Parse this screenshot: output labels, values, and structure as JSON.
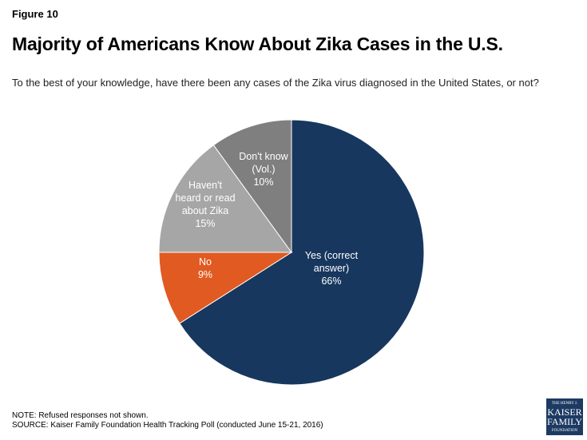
{
  "figure_label": "Figure 10",
  "chart_data": {
    "type": "pie",
    "title": "Majority of Americans Know About Zika Cases in the U.S.",
    "subtitle": "To the best of your knowledge, have there been any cases of the Zika virus diagnosed in the United States, or not?",
    "slices": [
      {
        "label": [
          "Yes (correct",
          "answer)",
          "66%"
        ],
        "value": 66,
        "color": "#17375e"
      },
      {
        "label": [
          "No",
          "9%"
        ],
        "value": 9,
        "color": "#e05a22"
      },
      {
        "label": [
          "Haven't",
          "heard or read",
          "about Zika",
          "15%"
        ],
        "value": 15,
        "color": "#a6a6a6"
      },
      {
        "label": [
          "Don't know",
          "(Vol.)",
          "10%"
        ],
        "value": 10,
        "color": "#7f7f7f"
      }
    ],
    "start": "12 o'clock",
    "direction": "clockwise"
  },
  "note": "NOTE: Refused responses not shown.",
  "source": "SOURCE: Kaiser Family Foundation Health Tracking Poll (conducted June 15-21, 2016)",
  "logo": {
    "lines": [
      "THE HENRY J.",
      "KAISER",
      "FAMILY",
      "FOUNDATION"
    ]
  }
}
